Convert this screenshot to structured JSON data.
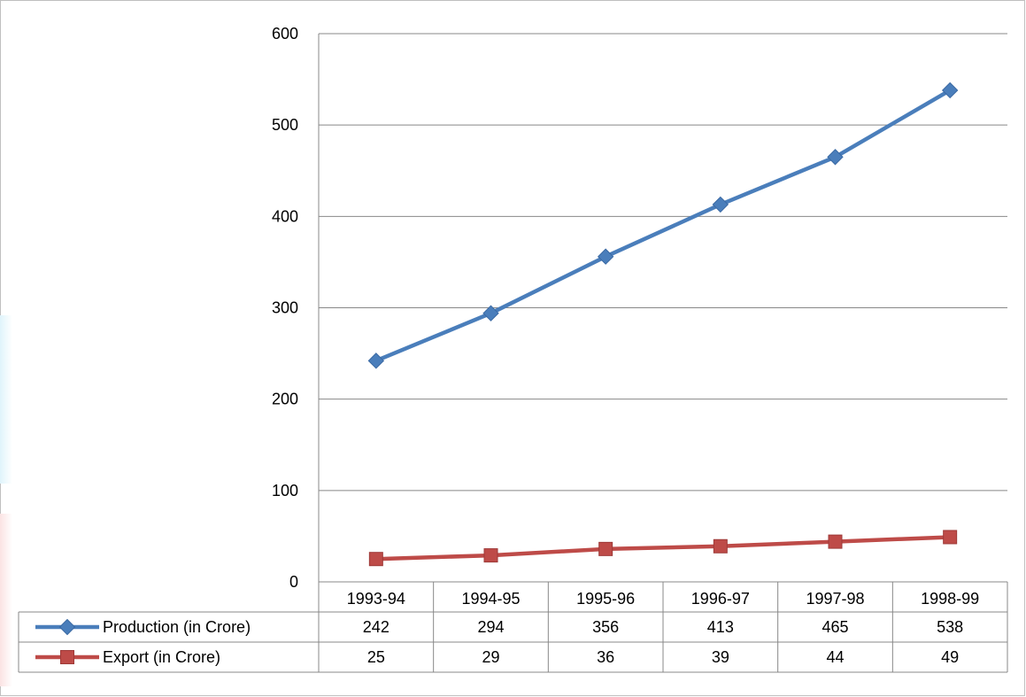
{
  "chart_data": {
    "type": "line",
    "categories": [
      "1993-94",
      "1994-95",
      "1995-96",
      "1996-97",
      "1997-98",
      "1998-99"
    ],
    "series": [
      {
        "name": "Production (in Crore)",
        "values": [
          242,
          294,
          356,
          413,
          465,
          538
        ],
        "color": "#4a7ebb",
        "marker": "diamond"
      },
      {
        "name": "Export (in Crore)",
        "values": [
          25,
          29,
          36,
          39,
          44,
          49
        ],
        "color": "#be4b48",
        "marker": "square"
      }
    ],
    "yticks": [
      "0",
      "100",
      "200",
      "300",
      "400",
      "500",
      "600"
    ],
    "ylim": [
      0,
      600
    ],
    "grid": true,
    "legend": "data-table-below",
    "title": "",
    "xlabel": "",
    "ylabel": ""
  }
}
